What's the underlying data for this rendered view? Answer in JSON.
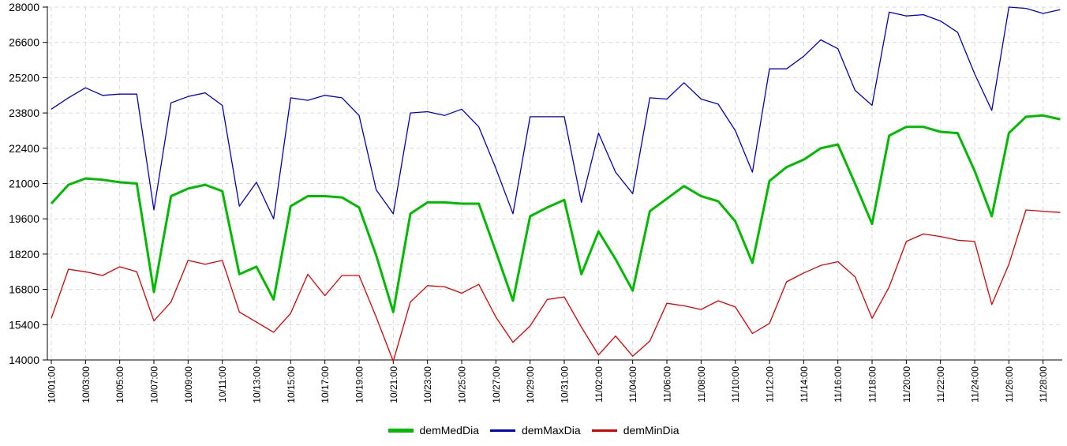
{
  "chart_data": {
    "type": "line",
    "title": "",
    "xlabel": "",
    "ylabel": "",
    "grid": true,
    "legend_position": "bottom",
    "ylim": [
      14000,
      28000
    ],
    "y_ticks": [
      14000,
      15400,
      16800,
      18200,
      19600,
      21000,
      22400,
      23800,
      25200,
      26600,
      28000
    ],
    "x_tick_labels": [
      "10/01:00",
      "10/03:00",
      "10/05:00",
      "10/07:00",
      "10/09:00",
      "10/11:00",
      "10/13:00",
      "10/15:00",
      "10/17:00",
      "10/19:00",
      "10/21:00",
      "10/23:00",
      "10/25:00",
      "10/27:00",
      "10/29:00",
      "10/31:00",
      "11/02:00",
      "11/04:00",
      "11/06:00",
      "11/08:00",
      "11/10:00",
      "11/12:00",
      "11/14:00",
      "11/16:00",
      "11/18:00",
      "11/20:00",
      "11/22:00",
      "11/24:00",
      "11/26:00",
      "11/28:00"
    ],
    "x": [
      "10/01",
      "10/02",
      "10/03",
      "10/04",
      "10/05",
      "10/06",
      "10/07",
      "10/08",
      "10/09",
      "10/10",
      "10/11",
      "10/12",
      "10/13",
      "10/14",
      "10/15",
      "10/16",
      "10/17",
      "10/18",
      "10/19",
      "10/20",
      "10/21",
      "10/22",
      "10/23",
      "10/24",
      "10/25",
      "10/26",
      "10/27",
      "10/28",
      "10/29",
      "10/30",
      "10/31",
      "11/01",
      "11/02",
      "11/03",
      "11/04",
      "11/05",
      "11/06",
      "11/07",
      "11/08",
      "11/09",
      "11/10",
      "11/11",
      "11/12",
      "11/13",
      "11/14",
      "11/15",
      "11/16",
      "11/17",
      "11/18",
      "11/19",
      "11/20",
      "11/21",
      "11/22",
      "11/23",
      "11/24",
      "11/25",
      "11/26",
      "11/27",
      "11/28",
      "11/29"
    ],
    "series": [
      {
        "name": "demMedDia",
        "color": "#00bb00",
        "stroke_width": 3,
        "values": [
          20200,
          20950,
          21200,
          21150,
          21050,
          21000,
          16700,
          20500,
          20800,
          20950,
          20700,
          17400,
          17700,
          16400,
          20100,
          20500,
          20500,
          20450,
          20050,
          18150,
          15900,
          19800,
          20250,
          20250,
          20200,
          20200,
          18300,
          16350,
          19700,
          20050,
          20350,
          17400,
          19100,
          18000,
          16750,
          19900,
          20400,
          20900,
          20500,
          20300,
          19500,
          17850,
          21100,
          21650,
          21950,
          22400,
          22550,
          21000,
          19400,
          22900,
          23250,
          23250,
          23050,
          23000,
          21500,
          19700,
          23000,
          23650,
          23700,
          23550
        ]
      },
      {
        "name": "demMaxDia",
        "color": "#0000cc",
        "stroke_width": 1.3,
        "values": [
          23950,
          24400,
          24800,
          24500,
          24550,
          24550,
          19950,
          24200,
          24450,
          24600,
          24100,
          20100,
          21050,
          19600,
          24400,
          24300,
          24500,
          24400,
          23700,
          20750,
          19800,
          23800,
          23850,
          23700,
          23950,
          23250,
          21600,
          19800,
          23650,
          23650,
          23650,
          20250,
          23000,
          21450,
          20600,
          24400,
          24350,
          25000,
          24350,
          24150,
          23100,
          21450,
          25550,
          25550,
          26050,
          26700,
          26350,
          24700,
          24100,
          27800,
          27650,
          27700,
          27450,
          27000,
          25350,
          23900,
          28000,
          27950,
          27750,
          27900
        ]
      },
      {
        "name": "demMinDia",
        "color": "#dd0000",
        "stroke_width": 1.3,
        "values": [
          15650,
          17600,
          17500,
          17350,
          17700,
          17500,
          15550,
          16300,
          17950,
          17800,
          17950,
          15900,
          15500,
          15100,
          15850,
          17400,
          16550,
          17350,
          17350,
          15700,
          13950,
          16300,
          16950,
          16900,
          16650,
          17000,
          15700,
          14700,
          15350,
          16400,
          16500,
          15300,
          14200,
          14950,
          14150,
          14750,
          16250,
          16150,
          16000,
          16350,
          16100,
          15050,
          15450,
          17100,
          17450,
          17750,
          17900,
          17300,
          15650,
          16900,
          18700,
          19000,
          18900,
          18750,
          18700,
          16200,
          17800,
          19950,
          19900,
          19850
        ]
      }
    ],
    "grid_color": "#d9d9d9",
    "axis_color": "#000000"
  },
  "legend": {
    "items": [
      {
        "label": "demMedDia",
        "color": "#00bb00"
      },
      {
        "label": "demMaxDia",
        "color": "#0000cc"
      },
      {
        "label": "demMinDia",
        "color": "#dd0000"
      }
    ]
  }
}
